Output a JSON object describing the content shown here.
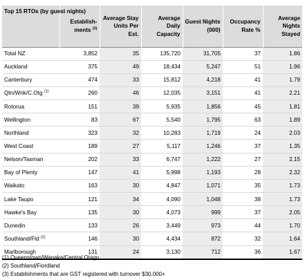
{
  "table": {
    "headers": [
      {
        "text": "Top 15 RTOs (by guest nights)",
        "sup": ""
      },
      {
        "text": "Establish-ments",
        "sup": "(3)"
      },
      {
        "text": "Average Stay Units Per Est.",
        "sup": ""
      },
      {
        "text": "Average Daily Capacity",
        "sup": ""
      },
      {
        "text": "Guest Nights (000)",
        "sup": ""
      },
      {
        "text": "Occupancy Rate %",
        "sup": ""
      },
      {
        "text": "Average Nights Stayed",
        "sup": ""
      }
    ],
    "rows": [
      {
        "name": "Total NZ",
        "sup": "",
        "cells": [
          "3,852",
          "35",
          "135,720",
          "31,705",
          "37",
          "1.86"
        ]
      },
      {
        "name": "Auckland",
        "sup": "",
        "cells": [
          "375",
          "49",
          "18,434",
          "5,247",
          "51",
          "1.96"
        ]
      },
      {
        "name": "Canterbury",
        "sup": "",
        "cells": [
          "474",
          "33",
          "15,812",
          "4,218",
          "41",
          "1.79"
        ]
      },
      {
        "name": "Qtn/Wnk/C.Otg",
        "sup": "(1)",
        "cells": [
          "260",
          "46",
          "12,035",
          "3,151",
          "41",
          "2.21"
        ]
      },
      {
        "name": "Rotorua",
        "sup": "",
        "cells": [
          "151",
          "39",
          "5,935",
          "1,856",
          "45",
          "1.81"
        ]
      },
      {
        "name": "Wellington",
        "sup": "",
        "cells": [
          "83",
          "67",
          "5,540",
          "1,795",
          "63",
          "1.89"
        ]
      },
      {
        "name": "Northland",
        "sup": "",
        "cells": [
          "323",
          "32",
          "10,283",
          "1,719",
          "24",
          "2.03"
        ]
      },
      {
        "name": "West Coast",
        "sup": "",
        "cells": [
          "189",
          "27",
          "5,117",
          "1,246",
          "37",
          "1.35"
        ]
      },
      {
        "name": "Nelson/Tasman",
        "sup": "",
        "cells": [
          "202",
          "33",
          "6,747",
          "1,222",
          "27",
          "2.15"
        ]
      },
      {
        "name": "Bay of Plenty",
        "sup": "",
        "cells": [
          "147",
          "41",
          "5,998",
          "1,193",
          "28",
          "2.32"
        ]
      },
      {
        "name": "Waikato",
        "sup": "",
        "cells": [
          "163",
          "30",
          "4,847",
          "1,071",
          "35",
          "1.73"
        ]
      },
      {
        "name": "Lake Taupo",
        "sup": "",
        "cells": [
          "121",
          "34",
          "4,090",
          "1,048",
          "38",
          "1.73"
        ]
      },
      {
        "name": "Hawke's Bay",
        "sup": "",
        "cells": [
          "135",
          "30",
          "4,073",
          "999",
          "37",
          "2.05"
        ]
      },
      {
        "name": "Dunedin",
        "sup": "",
        "cells": [
          "133",
          "26",
          "3,449",
          "973",
          "44",
          "1.70"
        ]
      },
      {
        "name": "Southland/Fld",
        "sup": "(2)",
        "cells": [
          "146",
          "30",
          "4,434",
          "872",
          "32",
          "1.64"
        ]
      },
      {
        "name": "Marlborough",
        "sup": "",
        "cells": [
          "131",
          "24",
          "3,130",
          "712",
          "36",
          "1.67"
        ]
      }
    ]
  },
  "notes": [
    "(1) Queenstown/Wanaka/Central Otago",
    "(2) Southland/Fiordland",
    "(3) Establishments that are GST registered with turnover $30,000+"
  ],
  "colors": {
    "header_background": "#dcdcdc",
    "shaded_column": "#ececec",
    "rule": "#000000"
  }
}
